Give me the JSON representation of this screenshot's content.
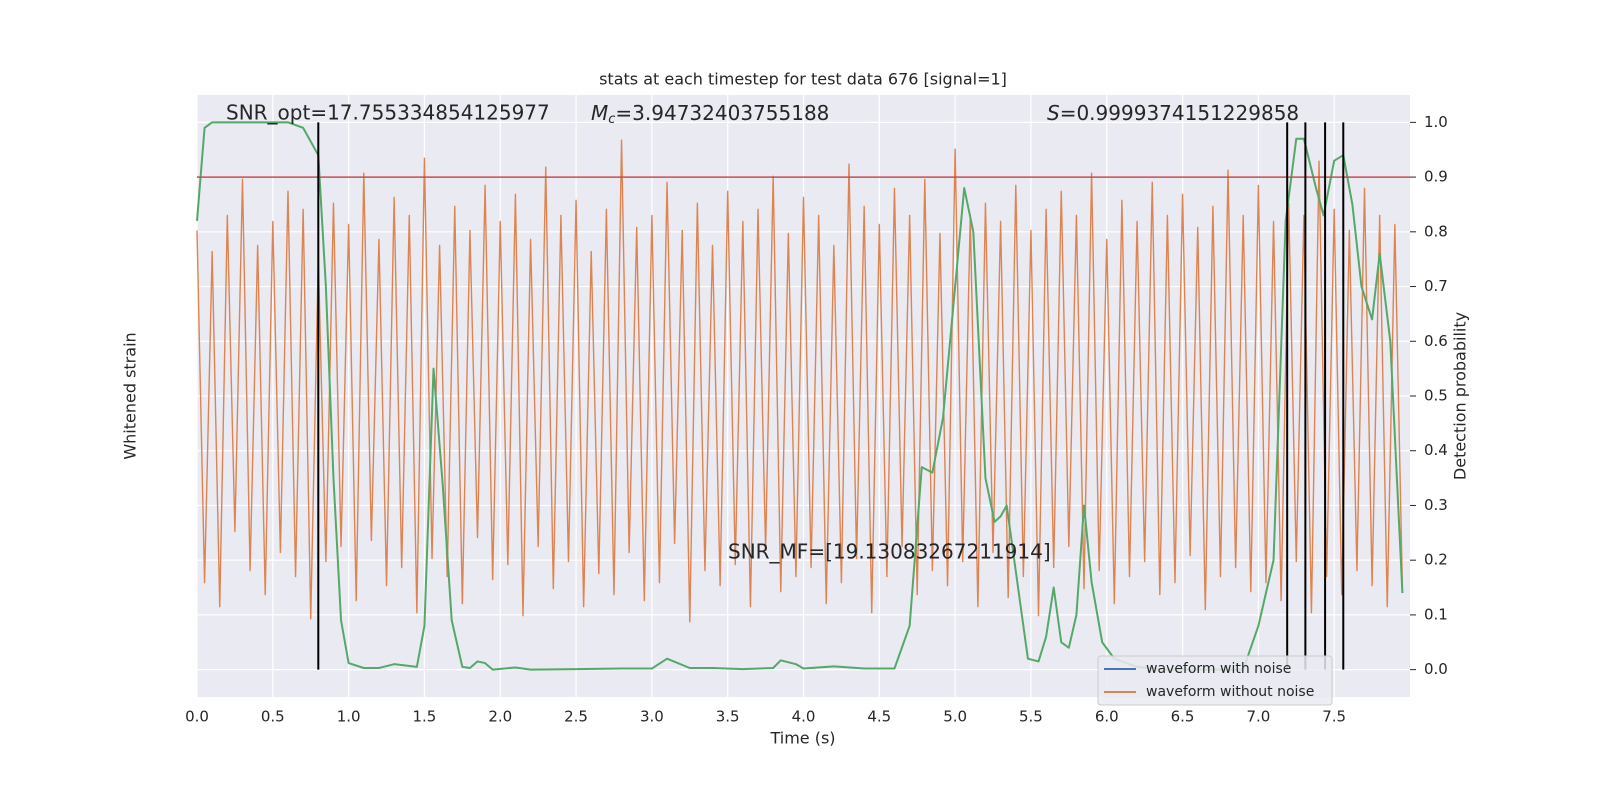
{
  "chart_data": {
    "type": "line",
    "title": "stats at each timestep for test data 676 [signal=1]",
    "xlabel": "Time (s)",
    "ylabel": "Whitened strain",
    "y2label": "Detection probability",
    "annotations": {
      "snr_opt": "SNR_opt=17.755334854125977",
      "chirp_mass": {
        "symbol": "M",
        "subscript": "c",
        "text": "=3.94732403755188"
      },
      "score": {
        "symbol": "S",
        "text": "=0.9999374151229858"
      },
      "snr_mf": "SNR_MF=[19.13083267211914]"
    },
    "legend": [
      {
        "name": "waveform with noise",
        "color": "#4c72b0"
      },
      {
        "name": "waveform without noise",
        "color": "#dd8452"
      }
    ],
    "xlim": [
      0,
      8
    ],
    "xticks": [
      {
        "value": 0,
        "label": "0.0"
      },
      0.5,
      {
        "value": 1,
        "label": "1.0"
      },
      1.5,
      {
        "value": 2,
        "label": "2.0"
      },
      2.5,
      {
        "value": 3,
        "label": "3.0"
      },
      3.5,
      {
        "value": 4,
        "label": "4.0"
      },
      4.5,
      {
        "value": 5,
        "label": "5.0"
      },
      5.5,
      {
        "value": 6,
        "label": "6.0"
      },
      6.5,
      {
        "value": 7,
        "label": "7.0"
      },
      7.5
    ],
    "ylim": [
      -1,
      1
    ],
    "y2lim": [
      -0.05,
      1.05
    ],
    "y2ticks": [
      {
        "value": 0,
        "label": "0.0"
      },
      0.1,
      0.2,
      0.3,
      0.4,
      0.5,
      0.6,
      0.7,
      0.8,
      0.9,
      {
        "value": 1,
        "label": "1.0"
      }
    ],
    "grid": true,
    "threshold": 0.9,
    "threshold_color": "#c44e52",
    "markers": [
      0.8,
      7.19,
      7.31,
      7.44,
      7.56
    ],
    "marker_color": "#000000",
    "series": [
      {
        "color": "#dd8452",
        "axis": "y",
        "x": [
          0,
          0.05,
          0.1,
          0.15,
          0.2,
          0.25,
          0.3,
          0.35,
          0.4,
          0.45,
          0.5,
          0.55,
          0.6,
          0.65,
          0.7,
          0.75,
          0.8,
          0.85,
          0.9,
          0.95,
          1,
          1.05,
          1.1,
          1.15,
          1.2,
          1.25,
          1.3,
          1.35,
          1.4,
          1.45,
          1.5,
          1.55,
          1.6,
          1.65,
          1.7,
          1.75,
          1.8,
          1.85,
          1.9,
          1.95,
          2,
          2.05,
          2.1,
          2.15,
          2.2,
          2.25,
          2.3,
          2.35,
          2.4,
          2.45,
          2.5,
          2.55,
          2.6,
          2.65,
          2.7,
          2.75,
          2.8,
          2.85,
          2.9,
          2.95,
          3,
          3.05,
          3.1,
          3.15,
          3.2,
          3.25,
          3.3,
          3.35,
          3.4,
          3.45,
          3.5,
          3.55,
          3.6,
          3.65,
          3.7,
          3.75,
          3.8,
          3.85,
          3.9,
          3.95,
          4,
          4.05,
          4.1,
          4.15,
          4.2,
          4.25,
          4.3,
          4.35,
          4.4,
          4.45,
          4.5,
          4.55,
          4.6,
          4.65,
          4.7,
          4.75,
          4.8,
          4.85,
          4.9,
          4.95,
          5,
          5.05,
          5.1,
          5.15,
          5.2,
          5.25,
          5.3,
          5.35,
          5.4,
          5.45,
          5.5,
          5.55,
          5.6,
          5.65,
          5.7,
          5.75,
          5.8,
          5.85,
          5.9,
          5.95,
          6,
          6.05,
          6.1,
          6.15,
          6.2,
          6.25,
          6.3,
          6.35,
          6.4,
          6.45,
          6.5,
          6.55,
          6.6,
          6.65,
          6.7,
          6.75,
          6.8,
          6.85,
          6.9,
          6.95,
          7,
          7.05,
          7.1,
          7.15,
          7.2,
          7.25,
          7.3,
          7.35,
          7.4,
          7.45,
          7.5,
          7.55,
          7.6,
          7.65,
          7.7,
          7.75,
          7.8,
          7.85,
          7.9,
          7.95
        ],
        "values": [
          0.55,
          -0.62,
          0.48,
          -0.7,
          0.6,
          -0.45,
          0.72,
          -0.58,
          0.5,
          -0.66,
          0.58,
          -0.52,
          0.68,
          -0.6,
          0.62,
          -0.74,
          0.46,
          -0.55,
          0.64,
          -0.5,
          0.57,
          -0.68,
          0.74,
          -0.48,
          0.52,
          -0.63,
          0.66,
          -0.57,
          0.6,
          -0.72,
          0.79,
          -0.54,
          0.5,
          -0.6,
          0.63,
          -0.69,
          0.55,
          -0.47,
          0.7,
          -0.61,
          0.58,
          -0.56,
          0.67,
          -0.73,
          0.52,
          -0.5,
          0.76,
          -0.64,
          0.6,
          -0.55,
          0.65,
          -0.7,
          0.48,
          -0.59,
          0.62,
          -0.66,
          0.85,
          -0.52,
          0.56,
          -0.68,
          0.6,
          -0.62,
          0.71,
          -0.49,
          0.55,
          -0.75,
          0.64,
          -0.58,
          0.5,
          -0.63,
          0.68,
          -0.56,
          0.58,
          -0.7,
          0.62,
          -0.51,
          0.73,
          -0.65,
          0.54,
          -0.6,
          0.66,
          -0.57,
          0.6,
          -0.69,
          0.5,
          -0.62,
          0.77,
          -0.54,
          0.63,
          -0.72,
          0.57,
          -0.6,
          0.69,
          -0.5,
          0.6,
          -0.66,
          0.72,
          -0.58,
          0.54,
          -0.63,
          0.82,
          -0.55,
          0.6,
          -0.7,
          0.64,
          -0.52,
          0.58,
          -0.67,
          0.7,
          -0.6,
          0.55,
          -0.73,
          0.62,
          -0.57,
          0.68,
          -0.5,
          0.6,
          -0.64,
          0.74,
          -0.58,
          0.52,
          -0.69,
          0.65,
          -0.6,
          0.58,
          -0.55,
          0.71,
          -0.66,
          0.6,
          -0.62,
          0.67,
          -0.53,
          0.56,
          -0.71,
          0.63,
          -0.6,
          0.75,
          -0.57,
          0.6,
          -0.65,
          0.7,
          -0.62,
          0.58,
          -0.68,
          0.64,
          -0.55,
          0.6,
          -0.72,
          0.78,
          -0.6,
          0.62,
          -0.66,
          0.55,
          -0.58,
          0.69,
          -0.63,
          0.6,
          -0.7,
          0.57,
          -0.64
        ]
      },
      {
        "color": "#55a868",
        "axis": "y2",
        "x": [
          0,
          0.05,
          0.1,
          0.2,
          0.3,
          0.4,
          0.5,
          0.6,
          0.7,
          0.8,
          0.85,
          0.9,
          0.95,
          1,
          1.1,
          1.2,
          1.3,
          1.45,
          1.5,
          1.56,
          1.62,
          1.68,
          1.75,
          1.8,
          1.85,
          1.9,
          1.95,
          2.1,
          2.2,
          2.5,
          2.8,
          3,
          3.1,
          3.25,
          3.4,
          3.6,
          3.8,
          3.85,
          3.95,
          4,
          4.2,
          4.4,
          4.6,
          4.7,
          4.78,
          4.85,
          4.92,
          5,
          5.06,
          5.12,
          5.2,
          5.26,
          5.3,
          5.34,
          5.42,
          5.48,
          5.55,
          5.6,
          5.65,
          5.7,
          5.75,
          5.8,
          5.85,
          5.9,
          5.97,
          6.05,
          6.2,
          6.4,
          6.9,
          7,
          7.1,
          7.18,
          7.25,
          7.3,
          7.38,
          7.43,
          7.5,
          7.56,
          7.62,
          7.68,
          7.75,
          7.8,
          7.87,
          7.95
        ],
        "values": [
          0.82,
          0.99,
          1,
          1,
          1,
          1,
          1,
          1,
          0.99,
          0.94,
          0.7,
          0.35,
          0.09,
          0.012,
          0.003,
          0.003,
          0.01,
          0.005,
          0.08,
          0.55,
          0.34,
          0.09,
          0.005,
          0.003,
          0.015,
          0.012,
          0,
          0.004,
          0,
          0.001,
          0.002,
          0.002,
          0.02,
          0.003,
          0.003,
          0.001,
          0.003,
          0.017,
          0.01,
          0.002,
          0.006,
          0.002,
          0.002,
          0.08,
          0.37,
          0.36,
          0.46,
          0.7,
          0.88,
          0.8,
          0.35,
          0.27,
          0.28,
          0.3,
          0.14,
          0.02,
          0.015,
          0.06,
          0.15,
          0.05,
          0.04,
          0.1,
          0.3,
          0.16,
          0.05,
          0.02,
          0.005,
          0,
          0,
          0.08,
          0.2,
          0.82,
          0.97,
          0.97,
          0.88,
          0.83,
          0.93,
          0.94,
          0.85,
          0.7,
          0.64,
          0.76,
          0.6,
          0.14
        ]
      }
    ]
  }
}
